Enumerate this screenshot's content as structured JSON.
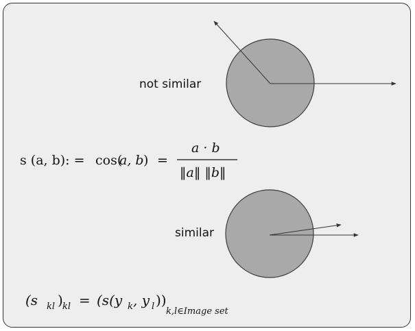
{
  "labels": {
    "not_similar": "not similar",
    "similar": "similar"
  },
  "formula_similarity": {
    "lhs": "s (a, b): =",
    "cos": "cos(",
    "cos_args": "a, b",
    "eq": "=",
    "numerator": "a · b",
    "denominator": "‖a‖ ‖b‖"
  },
  "formula_matrix": {
    "lhs": "(s",
    "lhs_sub": "kl",
    "lhs_close": ")",
    "lhs_sub2": "kl",
    "eq": "=",
    "rhs": "(s(y",
    "rhs_sub_k": "k",
    "comma": ", y",
    "rhs_sub_l": "l",
    "rhs_close": "))",
    "index": "k,l∈Image set"
  },
  "colors": {
    "circle_fill": "#a9a9a9",
    "circle_stroke": "#3a3a3a",
    "arrow": "#333333",
    "panel_bg": "#eeeeee"
  }
}
